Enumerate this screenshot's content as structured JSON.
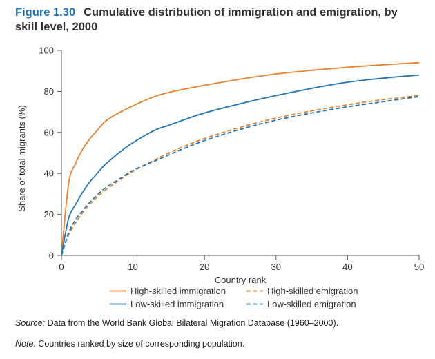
{
  "figure": {
    "number": "Figure 1.30",
    "title": "Cumulative distribution of immigration and emigration, by skill level, 2000"
  },
  "source": {
    "label": "Source:",
    "text": "Data from the World Bank Global Bilateral Migration Database (1960–2000)."
  },
  "note": {
    "label": "Note:",
    "text": "Countries ranked by size of corresponding population."
  },
  "chart_data": {
    "type": "line",
    "title": "Cumulative distribution of immigration and emigration, by skill level, 2000",
    "xlabel": "Country rank",
    "ylabel": "Share of total migrants (%)",
    "xlim": [
      0,
      50
    ],
    "ylim": [
      0,
      100
    ],
    "xticks": [
      0,
      10,
      20,
      30,
      40,
      50
    ],
    "yticks": [
      0,
      20,
      40,
      60,
      80,
      100
    ],
    "grid": false,
    "legend_position": "bottom",
    "x": [
      0,
      1,
      2,
      3,
      4,
      5,
      6,
      7,
      8,
      10,
      13,
      15,
      17,
      20,
      25,
      30,
      35,
      40,
      45,
      50
    ],
    "series": [
      {
        "name": "High-skilled immigration",
        "color": "#e8812a",
        "dash": "solid",
        "values": [
          0,
          35,
          45,
          52,
          57,
          61,
          65,
          67.5,
          69.5,
          73,
          77.5,
          79.5,
          81,
          83,
          86,
          88.5,
          90.3,
          91.8,
          93,
          94
        ]
      },
      {
        "name": "High-skilled emigration",
        "color": "#e8812a",
        "dash": "dashed",
        "values": [
          0,
          10,
          16,
          21,
          25,
          28.5,
          31.5,
          34,
          36.5,
          41,
          46.5,
          50,
          53,
          57,
          62.5,
          67,
          70.5,
          73.5,
          76,
          78
        ]
      },
      {
        "name": "Low-skilled immigration",
        "color": "#1f73b7",
        "dash": "solid",
        "values": [
          0,
          18,
          25,
          31,
          36,
          40,
          44,
          47,
          50,
          55,
          61,
          63.5,
          66,
          69.5,
          74,
          78,
          81.5,
          84.5,
          86.5,
          88
        ]
      },
      {
        "name": "Low-skilled emigration",
        "color": "#1f73b7",
        "dash": "dashed",
        "values": [
          0,
          11,
          17.5,
          22,
          26,
          29.5,
          32.5,
          35,
          37,
          41.5,
          46,
          49,
          52,
          56,
          61.5,
          66,
          69.5,
          72.5,
          75,
          77.5
        ]
      }
    ]
  }
}
